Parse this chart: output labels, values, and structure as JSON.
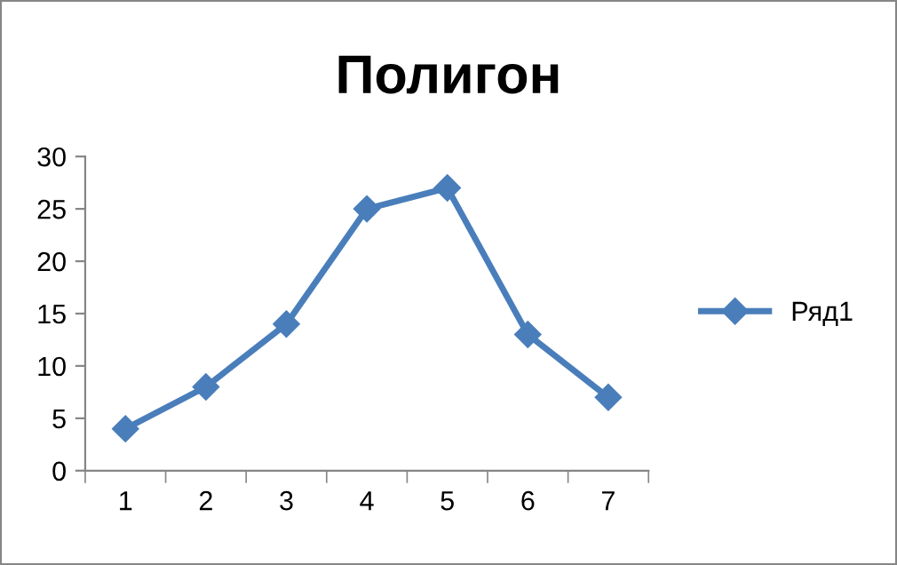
{
  "chart_data": {
    "type": "line",
    "title": "Полигон",
    "categories": [
      "1",
      "2",
      "3",
      "4",
      "5",
      "6",
      "7"
    ],
    "series": [
      {
        "name": "Ряд1",
        "color": "#4a7ebb",
        "values": [
          4,
          8,
          14,
          25,
          27,
          13,
          7
        ]
      }
    ],
    "ylim": [
      0,
      30
    ],
    "yticks": [
      0,
      5,
      10,
      15,
      20,
      25,
      30
    ],
    "grid": false,
    "legend": "right",
    "marker": "diamond",
    "line_style": "solid"
  }
}
